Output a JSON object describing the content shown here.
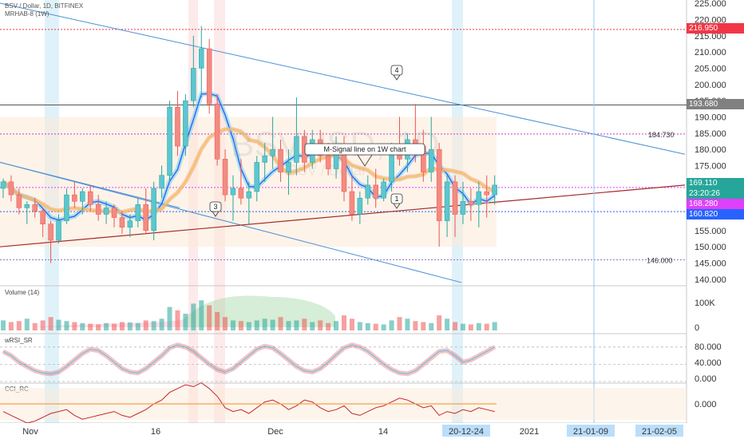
{
  "header": {
    "symbol_line": "BSV / Dollar, 1D, BITFINEX",
    "indicator_line": "MRHAB-8 (1W)"
  },
  "watermark": {
    "main": "BSVUSD, 1D",
    "sub": "BSV / Dollar"
  },
  "panes": {
    "volume_title": "Volume (14)",
    "rsi_title": "wRSI_SR",
    "cci_title": "CCI_RC"
  },
  "annotations": {
    "callout": "M-Signal line on 1W chart",
    "markers": [
      "4",
      "3",
      "1"
    ],
    "level_184": "184.730",
    "level_146": "146.000"
  },
  "price_labels": {
    "red": "216.950",
    "gray": "193.680",
    "green": "169.110",
    "timer": "23:20:26",
    "magenta": "168.280",
    "blue": "160.820"
  },
  "colors": {
    "up": "#26a69a",
    "down": "#ef5350",
    "trend_blue": "#4a8fd6",
    "trend_red": "#a52a2a",
    "red_label": "#f23645",
    "gray_label": "#808080",
    "magenta_label": "#e040fb",
    "blue_label": "#2962ff"
  },
  "chart_data": {
    "type": "candlestick",
    "price_axis": {
      "ticks": [
        "225.000",
        "220.000",
        "215.000",
        "210.000",
        "205.000",
        "200.000",
        "195.000",
        "190.000",
        "185.000",
        "180.000",
        "175.000",
        "170.000",
        "165.000",
        "160.000",
        "155.000",
        "150.000",
        "145.000",
        "140.000"
      ],
      "range": [
        138,
        226
      ]
    },
    "volume_axis": {
      "ticks": [
        "100K",
        "0"
      ]
    },
    "rsi_axis": {
      "ticks": [
        "80.000",
        "40.000",
        "0.000"
      ]
    },
    "cci_axis": {
      "ticks": [
        "0.000"
      ]
    },
    "time_axis": {
      "labels": [
        "Nov",
        "16",
        "Dec",
        "14",
        "20-12-24",
        "2021",
        "21-01-09",
        "21-02-05"
      ]
    },
    "candles": [
      [
        168,
        171,
        165,
        170
      ],
      [
        170,
        172,
        164,
        166
      ],
      [
        166,
        168,
        160,
        162
      ],
      [
        162,
        164,
        157,
        163
      ],
      [
        163,
        165,
        159,
        161
      ],
      [
        161,
        162,
        153,
        157
      ],
      [
        157,
        158,
        145,
        152
      ],
      [
        152,
        160,
        151,
        158
      ],
      [
        158,
        168,
        157,
        166
      ],
      [
        166,
        170,
        162,
        164
      ],
      [
        164,
        168,
        160,
        167
      ],
      [
        167,
        169,
        161,
        163
      ],
      [
        163,
        166,
        158,
        160
      ],
      [
        160,
        164,
        157,
        162
      ],
      [
        162,
        163,
        156,
        159
      ],
      [
        159,
        161,
        154,
        156
      ],
      [
        156,
        160,
        153,
        158
      ],
      [
        158,
        165,
        156,
        163
      ],
      [
        163,
        168,
        154,
        155
      ],
      [
        155,
        170,
        152,
        168
      ],
      [
        168,
        175,
        165,
        172
      ],
      [
        172,
        195,
        170,
        193
      ],
      [
        193,
        198,
        178,
        181
      ],
      [
        181,
        197,
        178,
        195
      ],
      [
        195,
        215,
        193,
        205
      ],
      [
        205,
        218,
        196,
        211
      ],
      [
        211,
        214,
        191,
        194
      ],
      [
        194,
        197,
        175,
        177
      ],
      [
        177,
        180,
        164,
        166
      ],
      [
        166,
        172,
        158,
        168
      ],
      [
        168,
        177,
        163,
        165
      ],
      [
        165,
        170,
        157,
        167
      ],
      [
        167,
        178,
        164,
        176
      ],
      [
        176,
        182,
        170,
        178
      ],
      [
        178,
        190,
        174,
        180
      ],
      [
        180,
        183,
        170,
        173
      ],
      [
        173,
        180,
        166,
        176
      ],
      [
        176,
        196,
        172,
        184
      ],
      [
        184,
        186,
        173,
        176
      ],
      [
        176,
        186,
        174,
        183
      ],
      [
        183,
        186,
        176,
        178
      ],
      [
        178,
        182,
        172,
        174
      ],
      [
        174,
        184,
        171,
        180
      ],
      [
        180,
        184,
        164,
        167
      ],
      [
        167,
        172,
        158,
        160
      ],
      [
        160,
        167,
        157,
        165
      ],
      [
        165,
        172,
        163,
        169
      ],
      [
        169,
        174,
        162,
        165
      ],
      [
        165,
        171,
        164,
        170
      ],
      [
        170,
        182,
        167,
        180
      ],
      [
        180,
        190,
        175,
        177
      ],
      [
        177,
        185,
        173,
        183
      ],
      [
        183,
        194,
        176,
        181
      ],
      [
        181,
        186,
        170,
        173
      ],
      [
        173,
        190,
        170,
        180
      ],
      [
        180,
        182,
        150,
        158
      ],
      [
        158,
        172,
        153,
        170
      ],
      [
        170,
        172,
        153,
        160
      ],
      [
        160,
        170,
        157,
        164
      ],
      [
        164,
        168,
        158,
        163
      ],
      [
        163,
        170,
        156,
        167
      ],
      [
        167,
        172,
        159,
        166
      ],
      [
        166,
        172,
        163,
        169
      ]
    ],
    "volume": [
      30,
      25,
      28,
      35,
      22,
      30,
      40,
      32,
      28,
      25,
      22,
      20,
      18,
      22,
      20,
      25,
      24,
      22,
      30,
      28,
      35,
      70,
      60,
      50,
      80,
      90,
      75,
      55,
      40,
      30,
      28,
      25,
      30,
      35,
      32,
      40,
      28,
      30,
      35,
      25,
      30,
      22,
      28,
      45,
      35,
      25,
      22,
      20,
      18,
      30,
      40,
      35,
      28,
      25,
      22,
      45,
      35,
      25,
      20,
      18,
      22,
      20,
      25
    ],
    "rsi": [
      70,
      60,
      45,
      35,
      25,
      20,
      18,
      22,
      35,
      50,
      65,
      75,
      72,
      60,
      45,
      30,
      22,
      20,
      30,
      45,
      60,
      78,
      85,
      80,
      70,
      55,
      40,
      28,
      22,
      30,
      45,
      60,
      75,
      82,
      78,
      65,
      50,
      35,
      25,
      22,
      30,
      45,
      62,
      78,
      85,
      80,
      70,
      55,
      40,
      28,
      20,
      18,
      25,
      40,
      55,
      70,
      72,
      60,
      45,
      50,
      60,
      70,
      80
    ],
    "cci": [
      -40,
      -60,
      -80,
      -100,
      -90,
      -70,
      -50,
      -40,
      -30,
      -60,
      -80,
      -70,
      -60,
      -50,
      -40,
      -60,
      -70,
      -50,
      -30,
      0,
      20,
      60,
      80,
      100,
      90,
      110,
      80,
      40,
      -20,
      -40,
      -30,
      -50,
      -20,
      10,
      20,
      0,
      -30,
      -10,
      20,
      10,
      -20,
      -40,
      -30,
      -10,
      -50,
      -60,
      -40,
      -20,
      -10,
      10,
      30,
      20,
      0,
      -20,
      -10,
      -60,
      -40,
      -50,
      -30,
      -40,
      -20,
      -30,
      -40
    ]
  }
}
